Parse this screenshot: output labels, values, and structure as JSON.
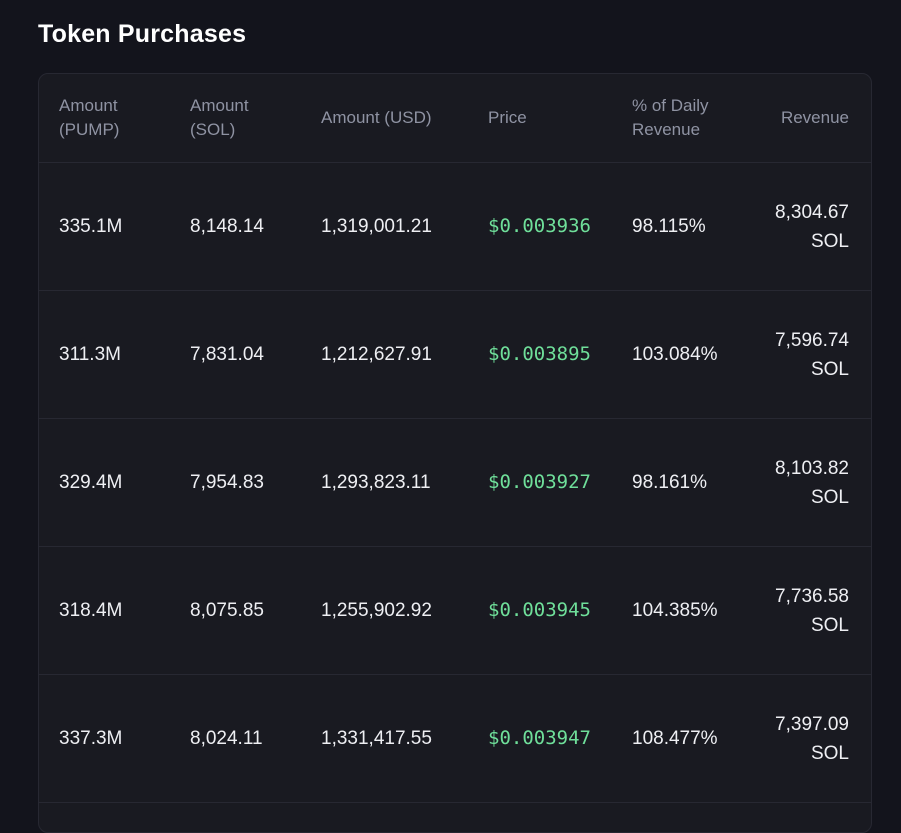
{
  "title": "Token Purchases",
  "colors": {
    "background": "#13141c",
    "card": "#191a21",
    "price": "#6fdf9a",
    "header_text": "#8f93a3"
  },
  "columns": [
    {
      "line1": "Amount",
      "line2": "(PUMP)"
    },
    {
      "line1": "Amount",
      "line2": "(SOL)"
    },
    {
      "line1": "Amount (USD)",
      "line2": ""
    },
    {
      "line1": "Price",
      "line2": ""
    },
    {
      "line1": "% of Daily",
      "line2": "Revenue"
    },
    {
      "line1": "Revenue",
      "line2": ""
    }
  ],
  "rows": [
    {
      "pump": "335.1M",
      "sol": "8,148.14",
      "usd": "1,319,001.21",
      "price": "$0.003936",
      "pct": "98.115%",
      "revenue": "8,304.67",
      "revenue_unit": "SOL"
    },
    {
      "pump": "311.3M",
      "sol": "7,831.04",
      "usd": "1,212,627.91",
      "price": "$0.003895",
      "pct": "103.084%",
      "revenue": "7,596.74",
      "revenue_unit": "SOL"
    },
    {
      "pump": "329.4M",
      "sol": "7,954.83",
      "usd": "1,293,823.11",
      "price": "$0.003927",
      "pct": "98.161%",
      "revenue": "8,103.82",
      "revenue_unit": "SOL"
    },
    {
      "pump": "318.4M",
      "sol": "8,075.85",
      "usd": "1,255,902.92",
      "price": "$0.003945",
      "pct": "104.385%",
      "revenue": "7,736.58",
      "revenue_unit": "SOL"
    },
    {
      "pump": "337.3M",
      "sol": "8,024.11",
      "usd": "1,331,417.55",
      "price": "$0.003947",
      "pct": "108.477%",
      "revenue": "7,397.09",
      "revenue_unit": "SOL"
    }
  ]
}
